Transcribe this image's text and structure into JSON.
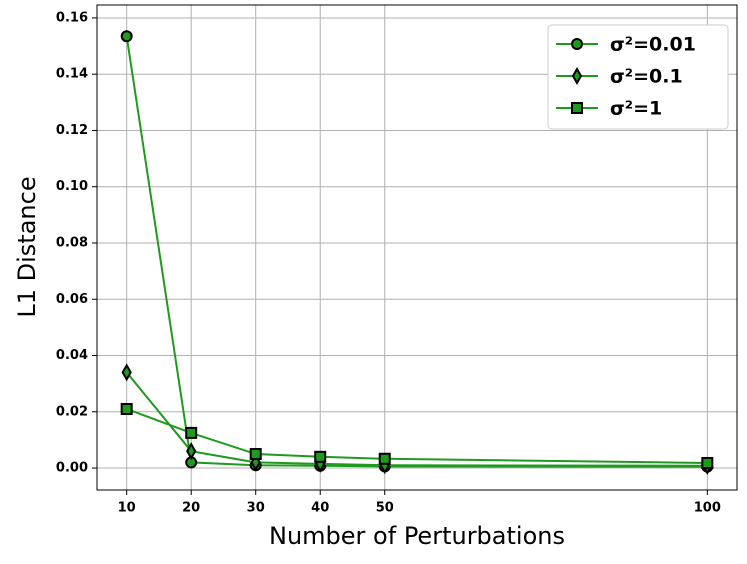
{
  "chart_data": {
    "type": "line",
    "x_label": "Number of Perturbations",
    "y_label": "L1 Distance",
    "x": [
      10,
      20,
      30,
      40,
      50,
      100
    ],
    "series": [
      {
        "name": "σ²=0.01",
        "color": "#1f9a1f",
        "marker": "o",
        "values": [
          0.1535,
          0.002,
          0.001,
          0.0008,
          0.0006,
          0.0005
        ]
      },
      {
        "name": "σ²=0.1",
        "color": "#1f9a1f",
        "marker": "d",
        "values": [
          0.034,
          0.006,
          0.002,
          0.0015,
          0.001,
          0.0008
        ]
      },
      {
        "name": "σ²=1",
        "color": "#1f9a1f",
        "marker": "s",
        "values": [
          0.021,
          0.0125,
          0.005,
          0.004,
          0.0033,
          0.0018
        ]
      }
    ],
    "xlim": [
      5.4,
      104.6
    ],
    "ylim": [
      -0.0078,
      0.1646
    ],
    "xticks": [
      10,
      20,
      30,
      40,
      50,
      100
    ],
    "yticks": [
      {
        "value": 0,
        "label": "0.00"
      },
      0.02,
      0.04,
      0.06,
      0.08,
      {
        "value": 0.1,
        "label": "0.10"
      },
      0.12,
      0.14,
      0.16
    ],
    "grid": true,
    "legend": "upper right"
  }
}
